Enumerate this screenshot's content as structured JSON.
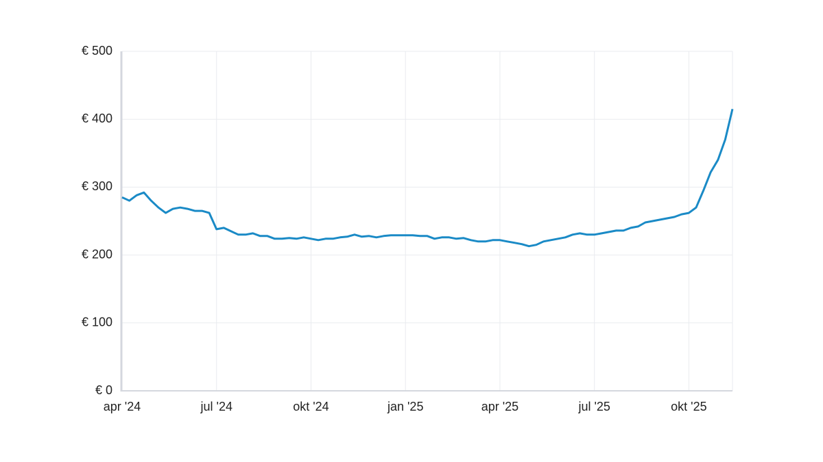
{
  "chart_data": {
    "type": "line",
    "categories": [
      "apr '24",
      null,
      null,
      null,
      null,
      null,
      null,
      null,
      null,
      null,
      null,
      null,
      null,
      "jul '24",
      null,
      null,
      null,
      null,
      null,
      null,
      null,
      null,
      null,
      null,
      null,
      null,
      "okt '24",
      null,
      null,
      null,
      null,
      null,
      null,
      null,
      null,
      null,
      null,
      null,
      null,
      "jan '25",
      null,
      null,
      null,
      null,
      null,
      null,
      null,
      null,
      null,
      null,
      null,
      null,
      "apr '25",
      null,
      null,
      null,
      null,
      null,
      null,
      null,
      null,
      null,
      null,
      null,
      null,
      "jul '25",
      null,
      null,
      null,
      null,
      null,
      null,
      null,
      null,
      null,
      null,
      null,
      null,
      "okt '25",
      null,
      null,
      null,
      null,
      null,
      null
    ],
    "series": [
      {
        "color": "#1a8ac6",
        "values": [
          285,
          280,
          288,
          292,
          280,
          270,
          262,
          268,
          270,
          268,
          265,
          265,
          262,
          238,
          240,
          235,
          230,
          230,
          232,
          228,
          228,
          224,
          224,
          225,
          224,
          226,
          224,
          222,
          224,
          224,
          226,
          227,
          230,
          227,
          228,
          226,
          228,
          229,
          229,
          229,
          229,
          228,
          228,
          224,
          226,
          226,
          224,
          225,
          222,
          220,
          220,
          222,
          222,
          220,
          218,
          216,
          213,
          215,
          220,
          222,
          224,
          226,
          230,
          232,
          230,
          230,
          232,
          234,
          236,
          236,
          240,
          242,
          248,
          250,
          252,
          254,
          256,
          260,
          262,
          270,
          295,
          322,
          340,
          370,
          415
        ]
      }
    ],
    "ylim": [
      0,
      500
    ],
    "yticks": [
      {
        "value": 0,
        "label": "€ 0"
      },
      {
        "value": 100,
        "label": "€ 100"
      },
      {
        "value": 200,
        "label": "€ 200"
      },
      {
        "value": 300,
        "label": "€ 300"
      },
      {
        "value": 400,
        "label": "€ 400"
      },
      {
        "value": 500,
        "label": "€ 500"
      }
    ],
    "grid": true
  }
}
